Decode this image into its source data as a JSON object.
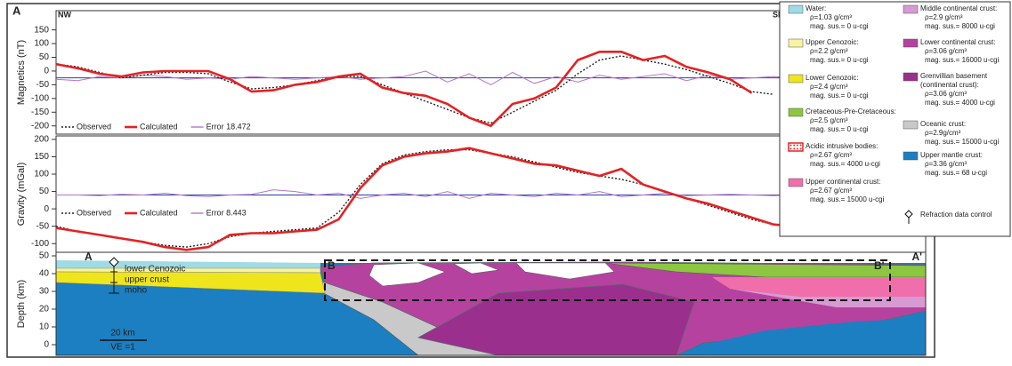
{
  "figure_label": "A",
  "chart_data": [
    {
      "type": "line",
      "ylabel": "Magnetics (nT)",
      "left_label": "NW",
      "right_label": "SE",
      "ylim": [
        -230,
        220
      ],
      "yticks": [
        -200,
        -150,
        -100,
        -50,
        0,
        50,
        100,
        150
      ],
      "baseline": -25,
      "baseline_color": "#2b3ea8",
      "series": [
        {
          "name": "Observed",
          "color": "#222222",
          "dashed": true,
          "values": [
            25,
            15,
            -5,
            -25,
            -15,
            -5,
            -5,
            -10,
            -40,
            -65,
            -60,
            -50,
            -35,
            -20,
            -20,
            -50,
            -80,
            -110,
            -140,
            -170,
            -190,
            -150,
            -110,
            -70,
            -10,
            40,
            55,
            40,
            25,
            5,
            -20,
            -45,
            -75,
            -85,
            null,
            null,
            null,
            null,
            null,
            null,
            null
          ]
        },
        {
          "name": "Calculated",
          "color": "#e32224",
          "values": [
            25,
            10,
            -10,
            -20,
            -5,
            0,
            0,
            0,
            -30,
            -75,
            -70,
            -50,
            -40,
            -20,
            -10,
            -60,
            -80,
            -90,
            -120,
            -170,
            -200,
            -120,
            -100,
            -60,
            40,
            70,
            70,
            40,
            55,
            15,
            -5,
            -30,
            -80,
            null,
            null,
            null,
            null,
            null,
            null,
            null,
            null
          ]
        },
        {
          "name": "Error 18.472",
          "color": "#b774c8",
          "values": [
            -30,
            -35,
            -20,
            -25,
            -15,
            -20,
            -30,
            -25,
            -30,
            -20,
            -25,
            -30,
            -25,
            -20,
            -30,
            -25,
            -20,
            0,
            -40,
            -10,
            -50,
            -5,
            -45,
            -20,
            -40,
            -15,
            -30,
            -20,
            -10,
            -35,
            -15,
            -30,
            -25,
            -20,
            -25,
            null,
            null,
            null,
            null,
            null,
            null
          ]
        }
      ]
    },
    {
      "type": "line",
      "ylabel": "Gravity (mGal)",
      "ylim": [
        -125,
        210
      ],
      "yticks": [
        -100,
        -50,
        0,
        50,
        100,
        150,
        200
      ],
      "baseline": 40,
      "baseline_color": "#2b3ea8",
      "series": [
        {
          "name": "Observed",
          "color": "#222222",
          "dashed": true,
          "values": [
            -50,
            -65,
            -75,
            -85,
            -95,
            -105,
            -110,
            -100,
            -80,
            -70,
            -65,
            -60,
            -55,
            -10,
            70,
            130,
            155,
            165,
            170,
            170,
            160,
            150,
            135,
            120,
            105,
            95,
            85,
            70,
            50,
            30,
            10,
            -10,
            -30,
            -45,
            -50,
            -52,
            -55,
            -57,
            -58,
            -58,
            -57
          ]
        },
        {
          "name": "Calculated",
          "color": "#e32224",
          "values": [
            -55,
            -65,
            -75,
            -85,
            -95,
            -110,
            -118,
            -110,
            -75,
            -70,
            -70,
            -65,
            -60,
            -30,
            60,
            125,
            150,
            160,
            165,
            175,
            160,
            145,
            130,
            125,
            110,
            95,
            115,
            70,
            50,
            30,
            15,
            -5,
            -25,
            -45,
            -50,
            -52,
            -55,
            -57,
            -58,
            -58,
            -57
          ]
        },
        {
          "name": "Error 8.443",
          "color": "#b774c8",
          "values": [
            40,
            40,
            38,
            42,
            40,
            45,
            38,
            35,
            40,
            42,
            55,
            50,
            40,
            45,
            30,
            40,
            45,
            35,
            50,
            30,
            45,
            40,
            35,
            45,
            40,
            50,
            35,
            40,
            45,
            38,
            40,
            42,
            40,
            38,
            40,
            40,
            40,
            40,
            40,
            40,
            40
          ]
        }
      ]
    },
    {
      "type": "section",
      "ylabel": "Depth (km)",
      "ylim": [
        -6,
        52
      ],
      "yticks": [
        0,
        10,
        20,
        30,
        40,
        50
      ],
      "annotations": [
        "A",
        "A'",
        "B",
        "B'",
        "lower Cenozoic",
        "upper crust",
        "moho",
        "20 km",
        "VE =1"
      ]
    }
  ],
  "legend": {
    "items": [
      {
        "label": "Water:",
        "color": "#9fdbe4",
        "lines": [
          "ρ=1.03 g/cm³",
          "mag. sus.= 0 u-cgi"
        ]
      },
      {
        "label": "Upper Cenozoic:",
        "color": "#f8f3a0",
        "lines": [
          "ρ=2.2 g/cm³",
          "mag. sus.= 0 u-cgi"
        ]
      },
      {
        "label": "Lower Cenozoic:",
        "color": "#efe51c",
        "lines": [
          "ρ=2.4 g/cm³",
          "mag. sus.= 0 u-cgi"
        ]
      },
      {
        "label": "Cretaceous-Pre-Cretaceous:",
        "color": "#8dc640",
        "lines": [
          "ρ=2.5 g/cm³",
          "mag. sus.= 0 u-cgi"
        ]
      },
      {
        "label": "Acidic intrusive bodies:",
        "color": "#e32224",
        "pattern": "dotted",
        "lines": [
          "ρ=2.67 g/cm³",
          "mag. sus.= 4000 u-cgi"
        ]
      },
      {
        "label": "Upper continental crust:",
        "color": "#f06faa",
        "lines": [
          "ρ=2.67 g/cm³",
          "mag. sus.= 15000 u-cgi"
        ]
      },
      {
        "label": "Middle continental crust:",
        "color": "#d89ad2",
        "lines": [
          "ρ=2.9 g/cm³",
          "mag. sus.= 8000 u-cgi"
        ]
      },
      {
        "label": "Lower continental crust:",
        "color": "#b6429f",
        "lines": [
          "ρ=3.06 g/cm³",
          "mag. sus.= 16000 u-cgi"
        ]
      },
      {
        "label": "Grenvillian basement",
        "color": "#9b2f8d",
        "lines": [
          "(continental crust):",
          "ρ=3.06 g/cm³",
          "mag. sus.= 4000 u-cgi"
        ]
      },
      {
        "label": "Oceanic crust:",
        "color": "#c9c9c9",
        "lines": [
          "ρ=2.9g/cm³",
          "mag. sus.= 15000 u-cgi"
        ]
      },
      {
        "label": "Upper mantle crust:",
        "color": "#1b7fc2",
        "lines": [
          "ρ=3.36 g/cm³",
          "mag. sus.= 68 u-cgi"
        ]
      },
      {
        "label": "Refraction data control",
        "lines": []
      }
    ]
  }
}
